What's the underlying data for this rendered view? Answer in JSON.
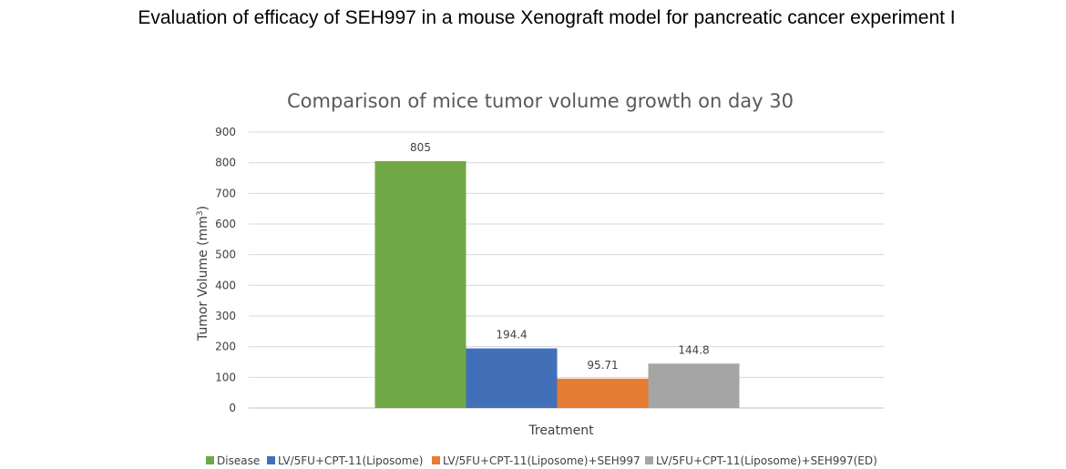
{
  "page": {
    "title": "Evaluation of efficacy of SEH997 in a mouse Xenograft model for pancreatic cancer experiment I"
  },
  "chart_data": {
    "type": "bar",
    "title": "Comparison of mice tumor volume growth on day 30",
    "xlabel": "Treatment",
    "ylabel_main": "Tumor Volume (mm",
    "ylabel_sup": "3",
    "ylabel_close": ")",
    "ylim": [
      0,
      900
    ],
    "yticks": [
      0,
      100,
      200,
      300,
      400,
      500,
      600,
      700,
      800,
      900
    ],
    "grid": true,
    "legend_position": "bottom",
    "series": [
      {
        "name": "Disease",
        "value": 805,
        "label": "805",
        "color": "#70a845"
      },
      {
        "name": "LV/5FU+CPT-11(Liposome)",
        "value": 194.4,
        "label": "194.4",
        "color": "#4270b8"
      },
      {
        "name": "LV/5FU+CPT-11(Liposome)+SEH997",
        "value": 95.71,
        "label": "95.71",
        "color": "#e67c33"
      },
      {
        "name": "LV/5FU+CPT-11(Liposome)+SEH997(ED)",
        "value": 144.8,
        "label": "144.8",
        "color": "#a5a5a5"
      }
    ]
  }
}
